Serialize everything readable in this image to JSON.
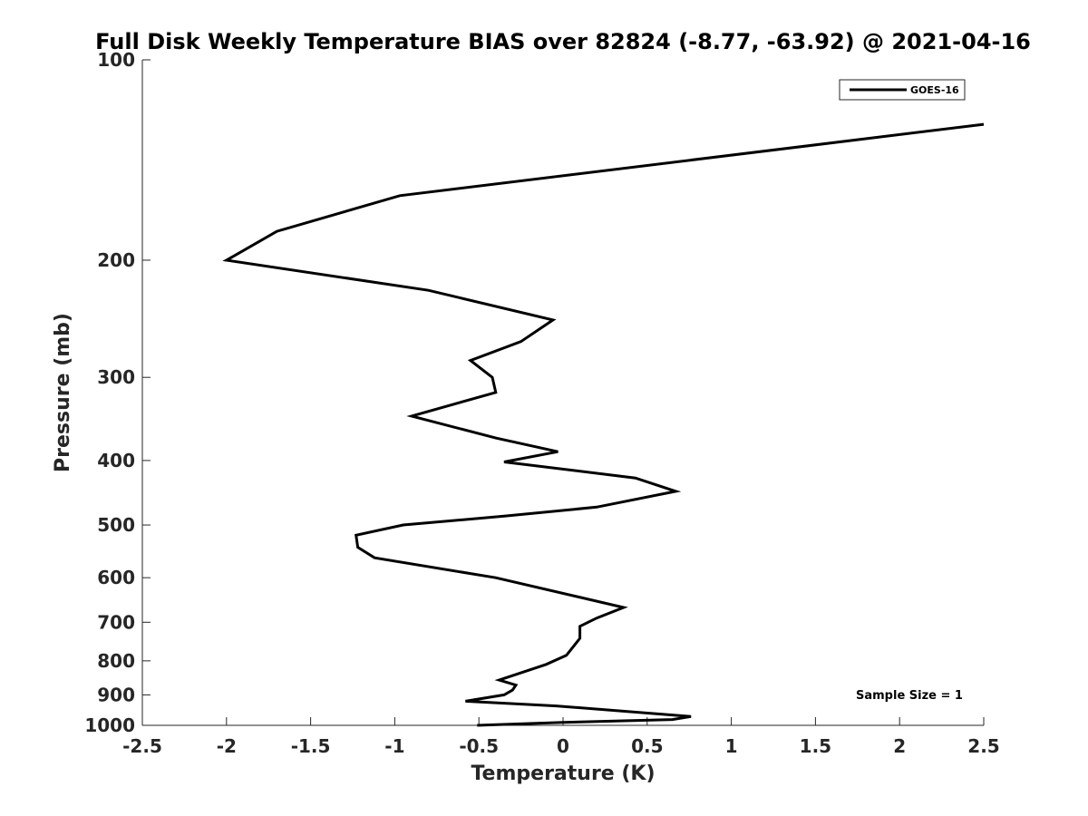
{
  "chart_data": {
    "type": "line",
    "title": "Full Disk Weekly Temperature BIAS over 82824 (-8.77, -63.92) @ 2021-04-16",
    "xlabel": "Temperature (K)",
    "ylabel": "Pressure (mb)",
    "xlim": [
      -2.5,
      2.5
    ],
    "ylim": [
      100,
      1000
    ],
    "y_scale": "log",
    "y_reversed": true,
    "x_ticks": [
      "-2.5",
      "-2",
      "-1.5",
      "-1",
      "-0.5",
      "0",
      "0.5",
      "1",
      "1.5",
      "2",
      "2.5"
    ],
    "y_ticks": [
      "100",
      "200",
      "300",
      "400",
      "500",
      "600",
      "700",
      "800",
      "900",
      "1000"
    ],
    "grid": false,
    "legend": {
      "position": "top-right",
      "entries": [
        "GOES-16"
      ]
    },
    "annotation": "Sample Size = 1",
    "series": [
      {
        "name": "GOES-16",
        "color": "#000000",
        "points": [
          [
            2.5,
            125
          ],
          [
            -0.97,
            160
          ],
          [
            -1.7,
            181
          ],
          [
            -2.0,
            200
          ],
          [
            -0.8,
            222
          ],
          [
            -0.06,
            246
          ],
          [
            -0.25,
            265
          ],
          [
            -0.55,
            283
          ],
          [
            -0.42,
            300
          ],
          [
            -0.4,
            316
          ],
          [
            -0.9,
            343
          ],
          [
            -0.4,
            370
          ],
          [
            -0.03,
            388
          ],
          [
            -0.35,
            402
          ],
          [
            0.43,
            425
          ],
          [
            0.67,
            445
          ],
          [
            0.2,
            470
          ],
          [
            -0.35,
            485
          ],
          [
            -0.95,
            500
          ],
          [
            -1.23,
            518
          ],
          [
            -1.22,
            540
          ],
          [
            -1.12,
            560
          ],
          [
            -0.4,
            600
          ],
          [
            0.36,
            665
          ],
          [
            0.2,
            690
          ],
          [
            0.1,
            710
          ],
          [
            0.1,
            740
          ],
          [
            0.02,
            785
          ],
          [
            -0.1,
            810
          ],
          [
            -0.38,
            855
          ],
          [
            -0.28,
            870
          ],
          [
            -0.3,
            885
          ],
          [
            -0.35,
            900
          ],
          [
            -0.58,
            920
          ],
          [
            -0.04,
            935
          ],
          [
            0.76,
            970
          ],
          [
            0.65,
            980
          ],
          [
            0.0,
            990
          ],
          [
            -0.51,
            1000
          ]
        ]
      }
    ]
  }
}
